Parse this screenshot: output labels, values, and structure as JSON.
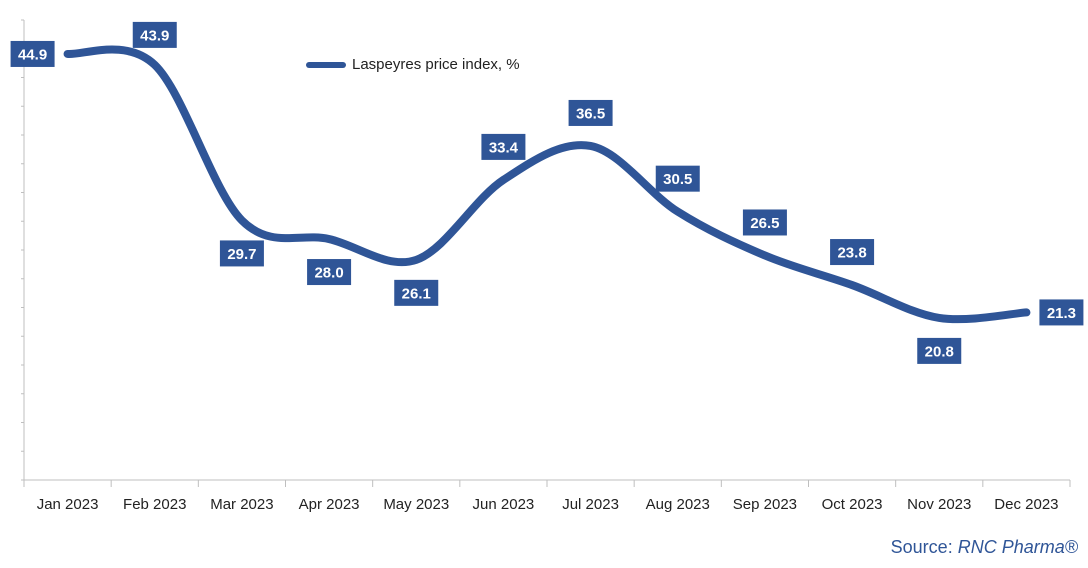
{
  "chart_data": {
    "type": "line",
    "categories": [
      "Jan 2023",
      "Feb 2023",
      "Mar 2023",
      "Apr 2023",
      "May 2023",
      "Jun 2023",
      "Jul 2023",
      "Aug 2023",
      "Sep 2023",
      "Oct 2023",
      "Nov 2023",
      "Dec 2023"
    ],
    "series": [
      {
        "name": "Laspeyres price index, %",
        "values": [
          44.9,
          43.9,
          29.7,
          28.0,
          26.1,
          33.4,
          36.5,
          30.5,
          26.5,
          23.8,
          20.8,
          21.3
        ],
        "color": "#2f5597"
      }
    ],
    "title": "",
    "xlabel": "",
    "ylabel": "",
    "ylim": [
      6.0,
      48.0
    ],
    "grid": false,
    "legend": "top-center",
    "data_labels": true
  },
  "source": {
    "prefix": "Source: ",
    "name": "RNC Pharma®"
  },
  "colors": {
    "line": "#2f5597",
    "label_bg": "#2f5597",
    "label_text": "#ffffff",
    "axis": "#bfbfbf",
    "tick_text": "#222222",
    "source_text": "#2f5597"
  }
}
